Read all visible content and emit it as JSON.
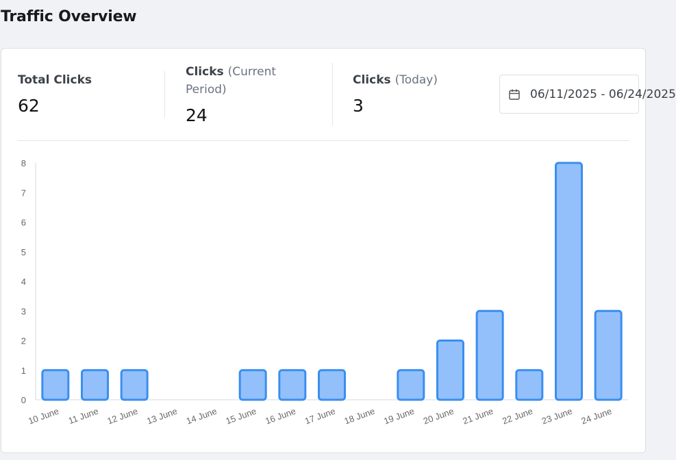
{
  "header": {
    "title": "Traffic Overview"
  },
  "stats": {
    "total": {
      "label": "Total Clicks",
      "value": "62"
    },
    "period": {
      "label": "Clicks",
      "sub": "(Current Period)",
      "value": "24"
    },
    "today": {
      "label": "Clicks",
      "sub": "(Today)",
      "value": "3"
    }
  },
  "date_range": {
    "value": "06/11/2025 - 06/24/2025",
    "icon": "calendar-icon"
  },
  "colors": {
    "bar_fill": "#93c0fb",
    "bar_stroke": "#3a8ef0"
  },
  "chart_data": {
    "type": "bar",
    "title": "",
    "xlabel": "",
    "ylabel": "",
    "categories": [
      "10 June",
      "11 June",
      "12 June",
      "13 June",
      "14 June",
      "15 June",
      "16 June",
      "17 June",
      "18 June",
      "19 June",
      "20 June",
      "21 June",
      "22 June",
      "23 June",
      "24 June"
    ],
    "values": [
      1,
      1,
      1,
      0,
      0,
      1,
      1,
      1,
      0,
      1,
      2,
      3,
      1,
      8,
      3
    ],
    "ylim": [
      0,
      8
    ],
    "yticks": [
      0,
      1,
      2,
      3,
      4,
      5,
      6,
      7,
      8
    ],
    "grid": false,
    "legend": "none"
  }
}
